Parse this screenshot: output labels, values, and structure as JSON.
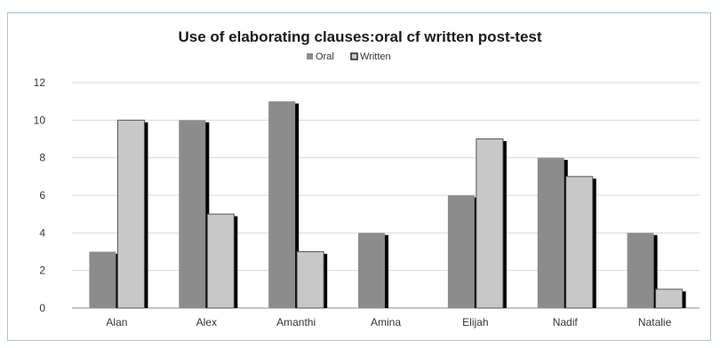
{
  "chart_data": {
    "type": "bar",
    "title": "Use of elaborating clauses:oral cf written post-test",
    "xlabel": "",
    "ylabel": "",
    "ylim": [
      0,
      12
    ],
    "yticks": [
      0,
      2,
      4,
      6,
      8,
      10,
      12
    ],
    "grid": true,
    "legend_position": "top",
    "categories": [
      "Alan",
      "Alex",
      "Amanthi",
      "Amina",
      "Elijah",
      "Nadif",
      "Natalie"
    ],
    "series": [
      {
        "name": "Oral",
        "values": [
          3,
          10,
          11,
          4,
          6,
          8,
          4
        ],
        "color": "#8c8c8c"
      },
      {
        "name": "Written",
        "values": [
          10,
          5,
          3,
          0,
          9,
          7,
          1
        ],
        "color": "#c8c8c8"
      }
    ]
  }
}
